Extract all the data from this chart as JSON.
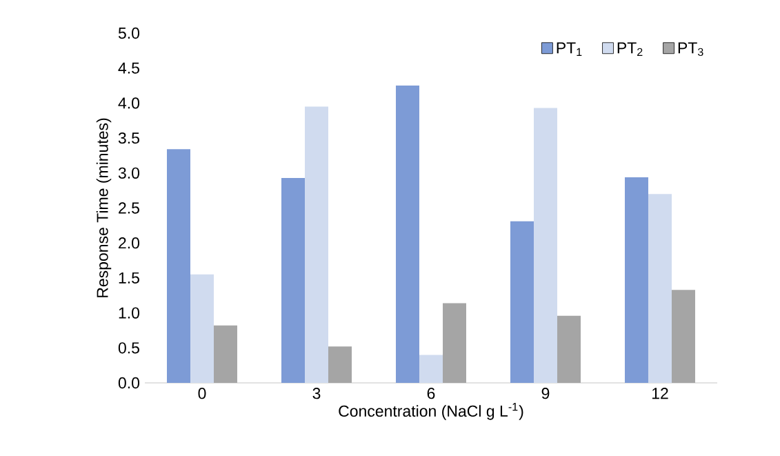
{
  "chart_data": {
    "type": "bar",
    "xlabel": "Concentration (NaCl g L$^{-1}$)",
    "ylabel": "Response Time (minutes)",
    "categories": [
      "0",
      "3",
      "6",
      "9",
      "12"
    ],
    "series": [
      {
        "name": "PT$_{1}$",
        "color": "#7d9bd6",
        "values": [
          3.34,
          2.93,
          4.25,
          2.31,
          2.94
        ]
      },
      {
        "name": "PT$_{2}$",
        "color": "#d0dbef",
        "values": [
          1.55,
          3.95,
          0.4,
          3.93,
          2.7
        ]
      },
      {
        "name": "PT$_{3}$",
        "color": "#a5a5a5",
        "values": [
          0.82,
          0.52,
          1.14,
          0.96,
          1.33
        ]
      }
    ],
    "ylim": [
      0,
      5
    ],
    "yticks": [
      {
        "value": 0,
        "label": "0.0"
      },
      0.5,
      {
        "value": 1,
        "label": "1.0"
      },
      1.5,
      {
        "value": 2,
        "label": "2.0"
      },
      2.5,
      {
        "value": 3,
        "label": "3.0"
      },
      3.5,
      {
        "value": 4,
        "label": "4.0"
      },
      4.5,
      {
        "value": 5,
        "label": "5.0"
      }
    ],
    "grid": false,
    "legend": "top right"
  }
}
